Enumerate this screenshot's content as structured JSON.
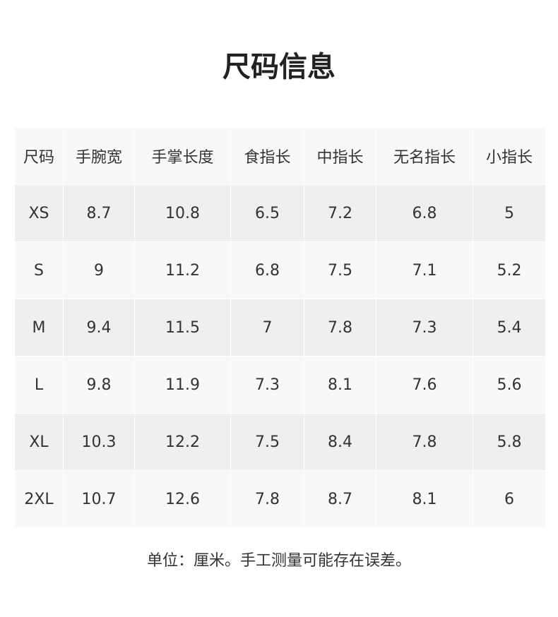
{
  "title": "尺码信息",
  "headers": [
    "尺码",
    "手腕宽",
    "手掌长度",
    "食指长",
    "中指长",
    "无名指长",
    "小指长"
  ],
  "rows": [
    [
      "XS",
      "8.7",
      "10.8",
      "6.5",
      "7.2",
      "6.8",
      "5"
    ],
    [
      "S",
      "9",
      "11.2",
      "6.8",
      "7.5",
      "7.1",
      "5.2"
    ],
    [
      "M",
      "9.4",
      "11.5",
      "7",
      "7.8",
      "7.3",
      "5.4"
    ],
    [
      "L",
      "9.8",
      "11.9",
      "7.3",
      "8.1",
      "7.6",
      "5.6"
    ],
    [
      "XL",
      "10.3",
      "12.2",
      "7.5",
      "8.4",
      "7.8",
      "5.8"
    ],
    [
      "2XL",
      "10.7",
      "12.6",
      "7.8",
      "8.7",
      "8.1",
      "6"
    ]
  ],
  "note": "单位：厘米。手工测量可能存在误差。"
}
